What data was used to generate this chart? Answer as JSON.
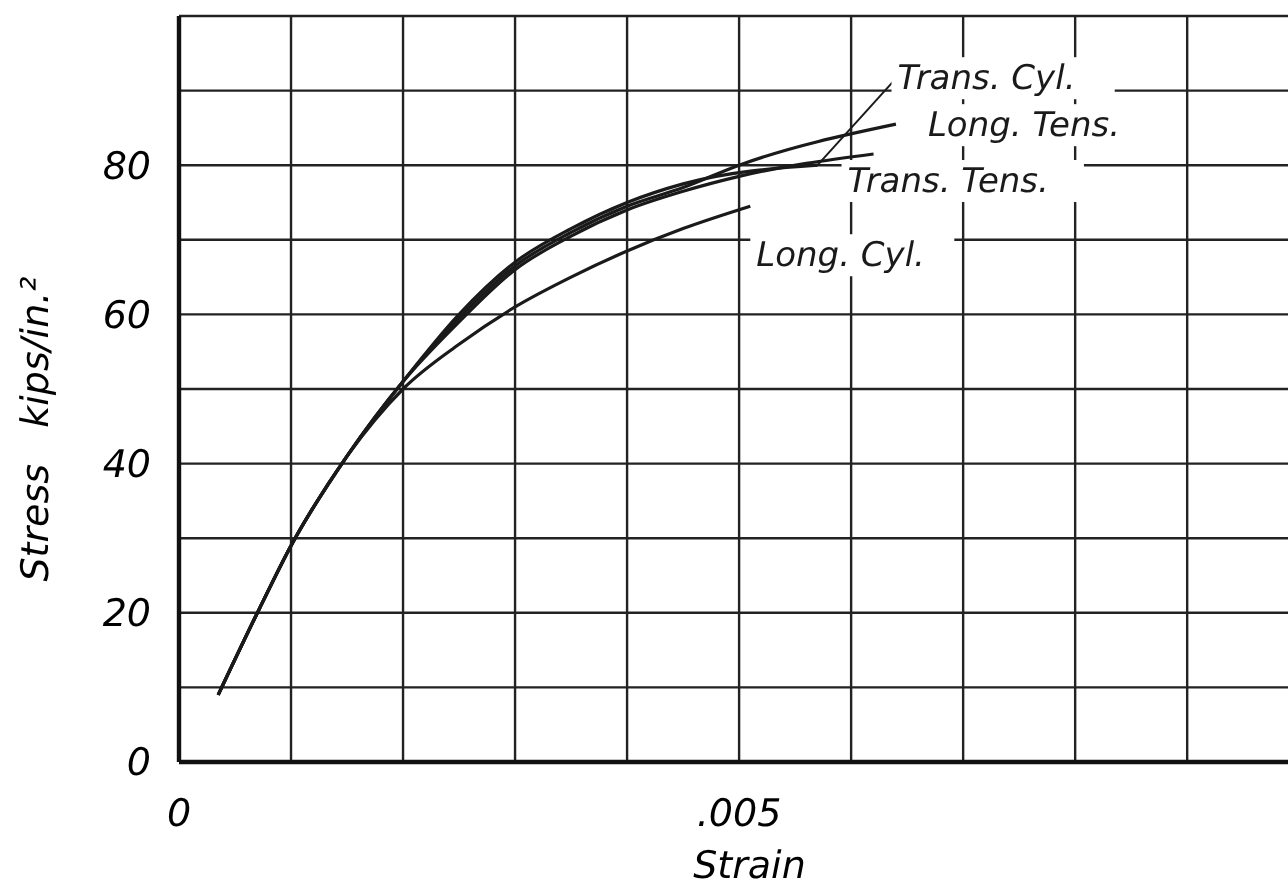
{
  "chart_data": {
    "type": "line",
    "xlabel": "Strain",
    "ylabel": "Stress   kips/in.²",
    "xlim": [
      0,
      0.0099
    ],
    "ylim": [
      0,
      100
    ],
    "xticks": [
      0,
      {
        "value": 0.001,
        "label": null
      },
      {
        "value": 0.002,
        "label": null
      },
      {
        "value": 0.003,
        "label": null
      },
      {
        "value": 0.004,
        "label": null
      },
      {
        "value": 0.005,
        "label": ".005"
      },
      {
        "value": 0.006,
        "label": null
      },
      {
        "value": 0.007,
        "label": null
      },
      {
        "value": 0.008,
        "label": null
      },
      {
        "value": 0.009,
        "label": null
      }
    ],
    "yticks": [
      0,
      {
        "value": 10,
        "label": null
      },
      20,
      {
        "value": 30,
        "label": null
      },
      40,
      {
        "value": 50,
        "label": null
      },
      60,
      {
        "value": 70,
        "label": null
      },
      80,
      {
        "value": 90,
        "label": null
      },
      {
        "value": 100,
        "label": null
      }
    ],
    "grid": true,
    "line_style": "solid",
    "marker": "none",
    "series": [
      {
        "name": "Trans. Cyl.",
        "color": "#1a1a1a",
        "x": [
          0.00035,
          0.0007,
          0.001,
          0.0015,
          0.002,
          0.0025,
          0.003,
          0.0035,
          0.004,
          0.0045,
          0.0057
        ],
        "values": [
          9,
          20,
          29,
          41,
          51,
          60,
          67,
          71.5,
          75,
          77.5,
          80
        ]
      },
      {
        "name": "Long. Tens.",
        "color": "#1a1a1a",
        "x": [
          0.00035,
          0.0007,
          0.001,
          0.0015,
          0.002,
          0.0025,
          0.003,
          0.0035,
          0.004,
          0.0045,
          0.005,
          0.0064
        ],
        "values": [
          9,
          20,
          29,
          41,
          51,
          59.5,
          66.5,
          71,
          74.5,
          77,
          80,
          85.5
        ]
      },
      {
        "name": "Trans. Tens.",
        "color": "#1a1a1a",
        "x": [
          0.00035,
          0.0007,
          0.001,
          0.0015,
          0.002,
          0.0025,
          0.003,
          0.0035,
          0.004,
          0.0045,
          0.005,
          0.0062
        ],
        "values": [
          9,
          20,
          29,
          41,
          51,
          59,
          66,
          70.5,
          74,
          76.5,
          78.5,
          81.5
        ]
      },
      {
        "name": "Long. Cyl.",
        "color": "#1a1a1a",
        "x": [
          0.00035,
          0.0007,
          0.001,
          0.0015,
          0.002,
          0.0025,
          0.003,
          0.0035,
          0.004,
          0.0045,
          0.0051
        ],
        "values": [
          9,
          20,
          29,
          41,
          50,
          56,
          61,
          65,
          68.5,
          71.5,
          74.5
        ]
      }
    ]
  }
}
